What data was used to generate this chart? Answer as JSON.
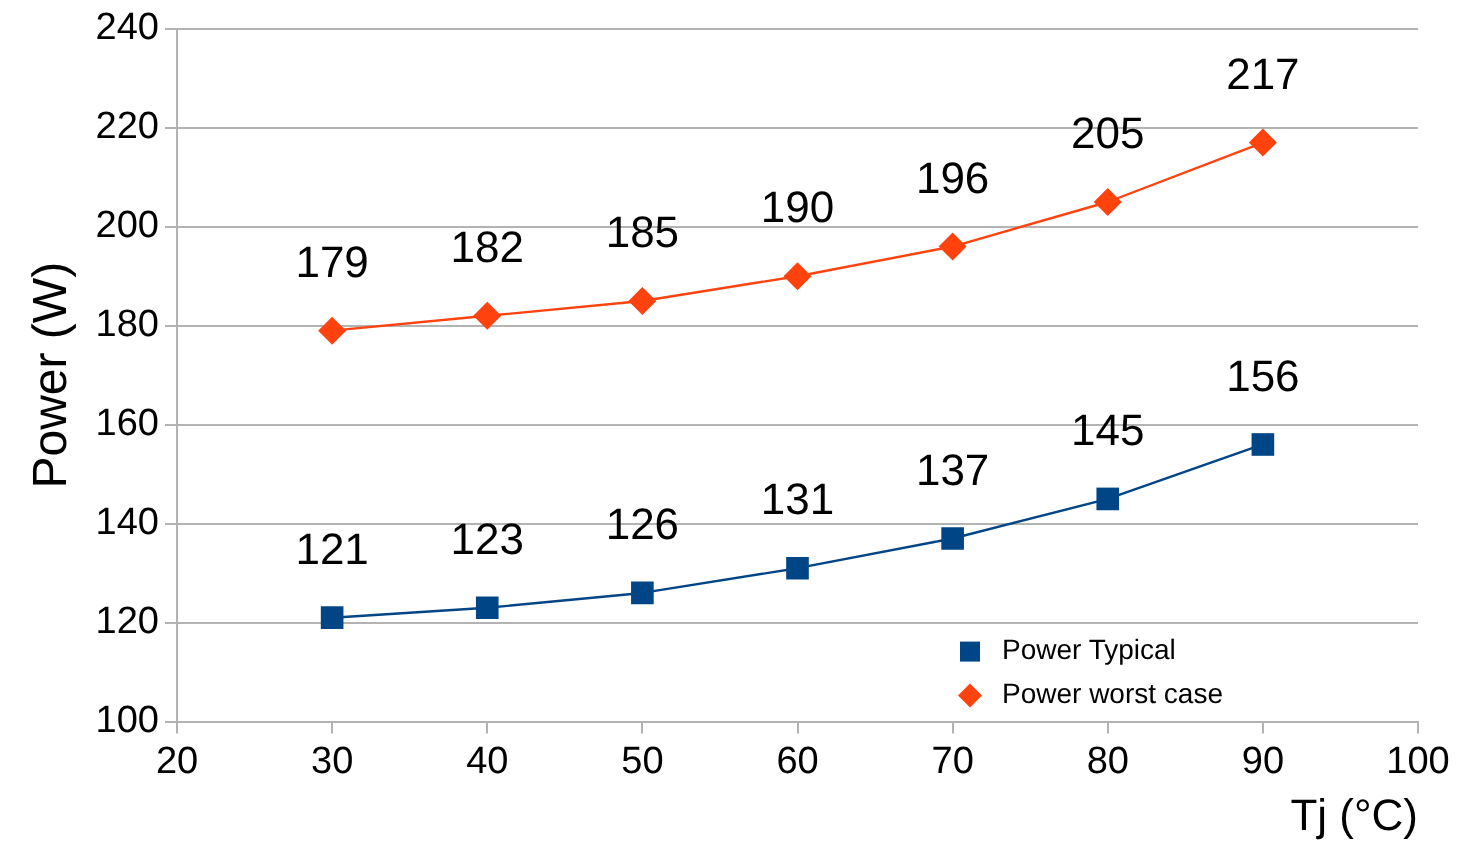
{
  "chart_data": {
    "type": "line",
    "xlabel": "Tj (°C)",
    "ylabel": "Power (W)",
    "x": [
      30,
      40,
      50,
      60,
      70,
      80,
      90
    ],
    "series": [
      {
        "name": "Power Typical",
        "color": "#004586",
        "marker": "square",
        "values": [
          121,
          123,
          126,
          131,
          137,
          145,
          156
        ]
      },
      {
        "name": "Power worst case",
        "color": "#ff420e",
        "marker": "diamond",
        "values": [
          179,
          182,
          185,
          190,
          196,
          205,
          217
        ]
      }
    ],
    "xlim": [
      20,
      100
    ],
    "xticks": [
      20,
      30,
      40,
      50,
      60,
      70,
      80,
      90,
      100
    ],
    "ylim": [
      100,
      240
    ],
    "yticks": [
      100,
      120,
      140,
      160,
      180,
      200,
      220,
      240
    ],
    "grid": "y",
    "legend": "bottom right",
    "data_labels": true
  }
}
